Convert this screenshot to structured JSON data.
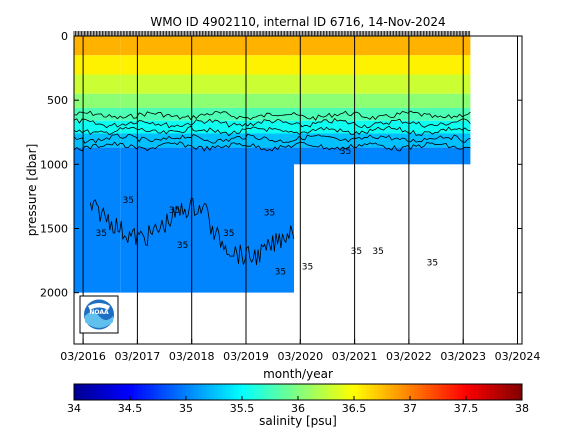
{
  "chart_data": {
    "type": "heatmap",
    "title": "WMO ID 4902110, internal ID 6716, 14-Nov-2024",
    "xlabel": "month/year",
    "ylabel": "pressure [dbar]",
    "ylim": [
      0,
      2400
    ],
    "y_inverted": true,
    "x_range_years": [
      2016.0,
      2024.25
    ],
    "x_tick_labels": [
      "03/2016",
      "03/2017",
      "03/2018",
      "03/2019",
      "03/2020",
      "03/2021",
      "03/2022",
      "03/2023",
      "03/2024"
    ],
    "x_tick_years": [
      2016.167,
      2017.167,
      2018.167,
      2019.167,
      2020.167,
      2021.167,
      2022.167,
      2023.167,
      2024.167
    ],
    "y_tick_values": [
      0,
      500,
      1000,
      1500,
      2000
    ],
    "y_tick_labels": [
      "0",
      "500",
      "1000",
      "1500",
      "2000"
    ],
    "colorbar": {
      "label": "salinity [psu]",
      "min": 34,
      "max": 38,
      "tick_values": [
        34,
        34.5,
        35,
        35.5,
        36,
        36.5,
        37,
        37.5,
        38
      ],
      "tick_labels": [
        "34",
        "34.5",
        "35",
        "35.5",
        "36",
        "36.5",
        "37",
        "37.5",
        "38"
      ],
      "colormap": [
        "#00008f",
        "#0000ff",
        "#0080ff",
        "#00ffff",
        "#80ff80",
        "#ffff00",
        "#ff8000",
        "#ff0000",
        "#800000"
      ]
    },
    "profile_coverage": [
      {
        "start": 2016.0,
        "end": 2016.85,
        "max_depth": 2000
      },
      {
        "start": 2016.85,
        "end": 2020.05,
        "max_depth": 2000
      },
      {
        "start": 2020.05,
        "end": 2023.3,
        "max_depth": 1000
      }
    ],
    "salinity_layers": [
      {
        "top": 0,
        "bottom": 150,
        "salinity": 36.8
      },
      {
        "top": 150,
        "bottom": 300,
        "salinity": 36.55
      },
      {
        "top": 300,
        "bottom": 450,
        "salinity": 36.3
      },
      {
        "top": 450,
        "bottom": 560,
        "salinity": 36.05
      },
      {
        "top": 560,
        "bottom": 660,
        "salinity": 35.8
      },
      {
        "top": 660,
        "bottom": 760,
        "salinity": 35.55
      },
      {
        "top": 760,
        "bottom": 870,
        "salinity": 35.25
      },
      {
        "top": 870,
        "bottom": 2000,
        "salinity": 35.02
      }
    ],
    "contour_35_label_positions": [
      {
        "year": 2016.5,
        "depth": 1560,
        "text": "35"
      },
      {
        "year": 2017.0,
        "depth": 1300,
        "text": "35"
      },
      {
        "year": 2017.85,
        "depth": 1380,
        "text": "35"
      },
      {
        "year": 2018.0,
        "depth": 1650,
        "text": "35"
      },
      {
        "year": 2018.85,
        "depth": 1560,
        "text": "35"
      },
      {
        "year": 2019.6,
        "depth": 1400,
        "text": "35"
      },
      {
        "year": 2019.8,
        "depth": 1860,
        "text": "35"
      },
      {
        "year": 2020.3,
        "depth": 1820,
        "text": "35"
      },
      {
        "year": 2021.2,
        "depth": 1700,
        "text": "35"
      },
      {
        "year": 2021.6,
        "depth": 1700,
        "text": "35"
      },
      {
        "year": 2022.6,
        "depth": 1790,
        "text": "35"
      },
      {
        "year": 2021.0,
        "depth": 920,
        "text": "35"
      }
    ]
  }
}
